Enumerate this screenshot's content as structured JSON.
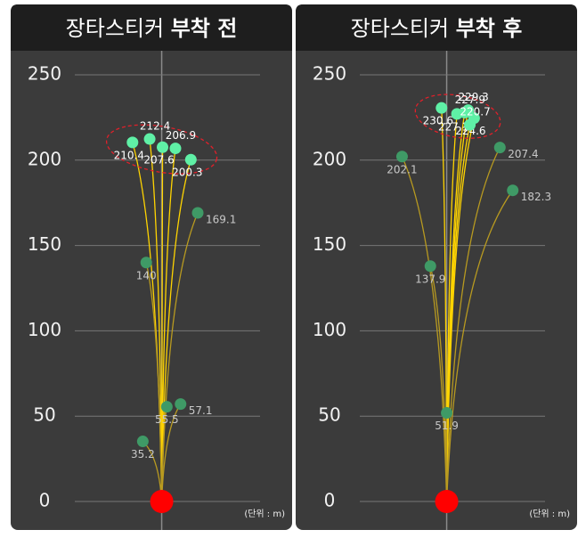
{
  "chart_data": [
    {
      "type": "scatter",
      "title": "장타스티커",
      "title_emphasis": "부착 전",
      "unit_note": "(단위 : m)",
      "x": [
        -17,
        -7,
        0.5,
        8,
        17,
        21,
        -9,
        11,
        3,
        -11
      ],
      "values": [
        210.4,
        212.4,
        207.6,
        206.9,
        200.3,
        169.1,
        140,
        57.1,
        55.5,
        35.2
      ],
      "colors": [
        "#5ff0a6",
        "#5ff0a6",
        "#5ff0a6",
        "#5ff0a6",
        "#5ff0a6",
        "#3f9a66",
        "#3f9a66",
        "#3f9a66",
        "#3f9a66",
        "#3f9a66"
      ],
      "line_colors": [
        "#ffd400",
        "#ffd400",
        "#ffd400",
        "#ffd400",
        "#ffd400",
        "#b89a20",
        "#b89a20",
        "#b89a20",
        "#b89a20",
        "#b89a20"
      ],
      "xlim": [
        -88,
        76
      ],
      "ylim": [
        0,
        250
      ],
      "yticks": [
        0,
        50,
        100,
        150,
        200,
        250
      ],
      "grid": true
    },
    {
      "type": "scatter",
      "title": "장타스티커",
      "title_emphasis": "부착 후",
      "unit_note": "(단위 : m)",
      "x": [
        -3,
        12.5,
        6,
        10.5,
        16,
        13.5,
        -26,
        31,
        38.5,
        -9.5,
        0
      ],
      "values": [
        230.6,
        229.3,
        227.1,
        227.9,
        224.6,
        220.7,
        202.1,
        207.4,
        182.3,
        137.9,
        51.9
      ],
      "colors": [
        "#5ff0a6",
        "#5ff0a6",
        "#5ff0a6",
        "#5ff0a6",
        "#5ff0a6",
        "#5ff0a6",
        "#3f9a66",
        "#3f9a66",
        "#3f9a66",
        "#3f9a66",
        "#3f9a66"
      ],
      "line_colors": [
        "#ffd400",
        "#ffd400",
        "#ffd400",
        "#ffd400",
        "#ffd400",
        "#ffd400",
        "#b89a20",
        "#b89a20",
        "#b89a20",
        "#b89a20",
        "#b89a20"
      ],
      "xlim": [
        -88,
        76
      ],
      "ylim": [
        0,
        250
      ],
      "yticks": [
        0,
        50,
        100,
        150,
        200,
        250
      ],
      "grid": true
    }
  ]
}
